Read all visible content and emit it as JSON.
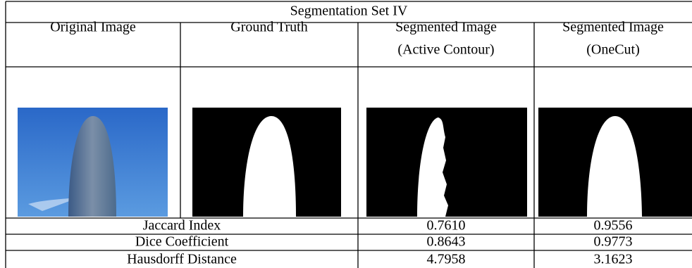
{
  "table": {
    "title": "Segmentation Set IV",
    "headers": [
      [
        "Original Image"
      ],
      [
        "Ground Truth"
      ],
      [
        "Segmented Image",
        "(Active Contour)"
      ],
      [
        "Segmented Image",
        "(OneCut)"
      ]
    ],
    "rows": [
      [
        "Jaccard Index",
        "0.7610",
        "0.9556"
      ],
      [
        "Dice Coefficient",
        "0.8643",
        "0.9773"
      ],
      [
        "Hausdorff Distance",
        "4.7958",
        "3.1623"
      ]
    ]
  }
}
